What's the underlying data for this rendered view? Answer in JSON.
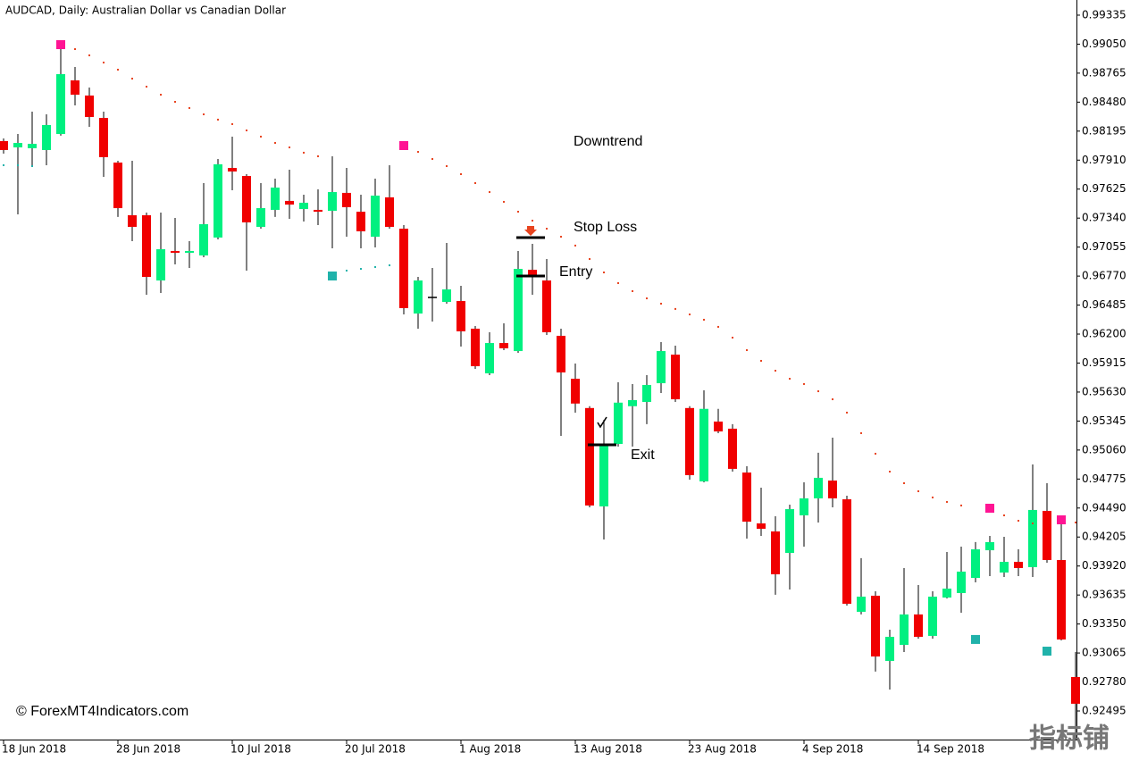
{
  "chart_data": {
    "type": "candlestick",
    "title": "AUDCAD, Daily:  Australian Dollar vs Canadian Dollar",
    "categories": [
      "18 Jun 2018",
      null,
      null,
      null,
      null,
      null,
      null,
      null,
      "28 Jun 2018",
      null,
      null,
      null,
      null,
      null,
      null,
      null,
      "10 Jul 2018",
      null,
      null,
      null,
      null,
      null,
      null,
      null,
      "20 Jul 2018",
      null,
      null,
      null,
      null,
      null,
      null,
      null,
      "1 Aug 2018",
      null,
      null,
      null,
      null,
      null,
      null,
      null,
      "13 Aug 2018",
      null,
      null,
      null,
      null,
      null,
      null,
      null,
      "23 Aug 2018",
      null,
      null,
      null,
      null,
      null,
      null,
      null,
      "4 Sep 2018",
      null,
      null,
      null,
      null,
      null,
      null,
      null,
      "14 Sep 2018",
      null,
      null,
      null,
      null,
      null,
      null,
      null,
      null,
      null,
      null,
      null
    ],
    "open": [
      0.98097,
      0.98035,
      0.98027,
      0.98009,
      0.98167,
      0.98694,
      0.98545,
      0.98325,
      0.97886,
      0.97368,
      0.97368,
      0.96727,
      0.97017,
      0.96999,
      0.96973,
      0.97149,
      0.97833,
      0.97754,
      0.97254,
      0.97421,
      0.97509,
      0.97429,
      0.97421,
      0.97412,
      0.97588,
      0.97403,
      0.97157,
      0.97544,
      0.97236,
      0.96402,
      0.9656,
      0.96516,
      0.96525,
      0.96253,
      0.95814,
      0.96112,
      0.96033,
      0.96832,
      0.96727,
      0.96183,
      0.95761,
      0.95473,
      0.94506,
      0.9512,
      0.95491,
      0.95533,
      0.95717,
      0.95998,
      0.95473,
      0.94752,
      0.9534,
      0.9527,
      0.94839,
      0.94339,
      0.9426,
      0.94049,
      0.94418,
      0.94585,
      0.9476,
      0.94576,
      0.9347,
      0.93628,
      0.92987,
      0.93145,
      0.93444,
      0.93233,
      0.9361,
      0.93654,
      0.93803,
      0.94075,
      0.93856,
      0.93961,
      0.93909,
      0.94462,
      0.93979,
      0.92829
    ],
    "high": [
      0.98123,
      0.98167,
      0.98387,
      0.9836,
      0.99089,
      0.98826,
      0.98624,
      0.98387,
      0.97904,
      0.97904,
      0.97394,
      0.97394,
      0.97342,
      0.97113,
      0.97684,
      0.97921,
      0.98141,
      0.97772,
      0.97684,
      0.97728,
      0.97816,
      0.9757,
      0.97623,
      0.97948,
      0.97833,
      0.9757,
      0.97728,
      0.9786,
      0.97271,
      0.96762,
      0.9685,
      0.97096,
      0.96674,
      0.96279,
      0.96218,
      0.96306,
      0.97017,
      0.97087,
      0.96938,
      0.96253,
      0.95911,
      0.95491,
      0.95357,
      0.95726,
      0.95709,
      0.95796,
      0.96121,
      0.96086,
      0.95491,
      0.95647,
      0.95465,
      0.95314,
      0.94901,
      0.9469,
      0.94409,
      0.94523,
      0.94743,
      0.95033,
      0.95182,
      0.94611,
      0.93997,
      0.93672,
      0.93294,
      0.939,
      0.93733,
      0.93672,
      0.94058,
      0.94111,
      0.94155,
      0.94216,
      0.94207,
      0.94084,
      0.94918,
      0.94734,
      0.94348,
      0.93075
    ],
    "low": [
      0.97974,
      0.97377,
      0.9786,
      0.9786,
      0.9815,
      0.98448,
      0.98237,
      0.97746,
      0.97351,
      0.97113,
      0.96587,
      0.96604,
      0.96885,
      0.9685,
      0.96955,
      0.97131,
      0.97614,
      0.96824,
      0.97236,
      0.97351,
      0.97333,
      0.97307,
      0.97271,
      0.97043,
      0.97157,
      0.97043,
      0.97052,
      0.97236,
      0.96393,
      0.96253,
      0.96323,
      0.96499,
      0.96077,
      0.95858,
      0.95796,
      0.96042,
      0.96016,
      0.96587,
      0.96191,
      0.95199,
      0.95428,
      0.94497,
      0.94181,
      0.95094,
      0.95094,
      0.95314,
      0.95621,
      0.95533,
      0.94769,
      0.94743,
      0.95226,
      0.94848,
      0.94189,
      0.94216,
      0.93637,
      0.93689,
      0.94111,
      0.94348,
      0.94497,
      0.93531,
      0.93444,
      0.92882,
      0.92706,
      0.93075,
      0.93206,
      0.93206,
      0.93601,
      0.93461,
      0.93759,
      0.93821,
      0.93812,
      0.93821,
      0.93812,
      0.93953,
      0.93189,
      0.92214
    ],
    "close": [
      0.98009,
      0.98079,
      0.9807,
      0.98255,
      0.98755,
      0.98553,
      0.98334,
      0.97939,
      0.97438,
      0.97254,
      0.96762,
      0.97034,
      0.96999,
      0.97017,
      0.9728,
      0.97869,
      0.97798,
      0.97298,
      0.97438,
      0.9764,
      0.97473,
      0.97491,
      0.97403,
      0.97596,
      0.97447,
      0.9721,
      0.97561,
      0.97254,
      0.96455,
      0.96727,
      0.9656,
      0.96639,
      0.96227,
      0.95884,
      0.96112,
      0.9606,
      0.96841,
      0.9678,
      0.96218,
      0.95823,
      0.95517,
      0.94515,
      0.95112,
      0.95526,
      0.95551,
      0.957,
      0.96033,
      0.95559,
      0.94813,
      0.95465,
      0.95243,
      0.94875,
      0.94356,
      0.94286,
      0.93839,
      0.94479,
      0.94585,
      0.94787,
      0.94585,
      0.93549,
      0.93619,
      0.93031,
      0.93224,
      0.93444,
      0.93224,
      0.93619,
      0.93698,
      0.93865,
      0.94084,
      0.94155,
      0.93961,
      0.939,
      0.94471,
      0.93979,
      0.93198,
      0.92566
    ],
    "up_color": "#00f080",
    "down_color": "#f00000",
    "sar_down": {
      "color": "#e8441f",
      "start_color": "#ff1493",
      "values": [
        null,
        null,
        null,
        null,
        0.99045,
        0.99001,
        0.9894,
        0.98869,
        0.98799,
        0.98711,
        0.98632,
        0.98553,
        0.98483,
        0.98422,
        0.9836,
        0.98308,
        0.98264,
        0.98202,
        0.98141,
        0.98079,
        0.98035,
        0.97983,
        0.97948,
        null,
        null,
        null,
        null,
        null,
        0.98053,
        0.97991,
        0.97921,
        0.97851,
        0.97772,
        0.97684,
        0.97596,
        0.975,
        0.97403,
        0.97315,
        0.97236,
        0.97157,
        0.9707,
        0.96938,
        0.96806,
        0.96701,
        0.96622,
        0.96551,
        0.96499,
        0.96447,
        0.96393,
        0.96341,
        0.96271,
        0.96165,
        0.96042,
        0.95937,
        0.9584,
        0.95761,
        0.95709,
        0.95638,
        0.95559,
        0.95428,
        0.95226,
        0.95024,
        0.94848,
        0.94734,
        0.94655,
        0.94594,
        0.9455,
        0.94515,
        null,
        0.94488,
        0.94418,
        0.94365,
        0.94339,
        null,
        0.94374,
        0.94348
      ]
    },
    "sar_up": {
      "color": "#20b2aa",
      "start_color": "#20b2aa",
      "values": [
        0.9786,
        0.9786,
        0.97851,
        null,
        null,
        null,
        null,
        null,
        null,
        null,
        null,
        null,
        null,
        null,
        null,
        null,
        null,
        null,
        null,
        null,
        null,
        null,
        null,
        0.96771,
        0.96824,
        0.96841,
        0.96859,
        0.96876,
        null,
        null,
        null,
        null,
        null,
        null,
        null,
        null,
        null,
        null,
        null,
        null,
        null,
        null,
        null,
        null,
        null,
        null,
        null,
        null,
        null,
        null,
        null,
        null,
        null,
        null,
        null,
        null,
        null,
        null,
        null,
        null,
        null,
        null,
        null,
        null,
        null,
        null,
        null,
        null,
        0.93198,
        null,
        null,
        null,
        null,
        0.93083,
        null,
        null
      ]
    },
    "ylim": [
      0.92214,
      0.99484
    ],
    "yticks": [
      0.99335,
      {
        "value": 0.9905,
        "label": "0.99050"
      },
      0.98765,
      {
        "value": 0.9848,
        "label": "0.98480"
      },
      0.98195,
      {
        "value": 0.9791,
        "label": "0.97910"
      },
      0.97625,
      {
        "value": 0.9734,
        "label": "0.97340"
      },
      0.97055,
      {
        "value": 0.9677,
        "label": "0.96770"
      },
      0.96485,
      {
        "value": 0.962,
        "label": "0.96200"
      },
      0.95915,
      {
        "value": 0.9563,
        "label": "0.95630"
      },
      0.95345,
      {
        "value": 0.9506,
        "label": "0.95060"
      },
      0.94775,
      {
        "value": 0.9449,
        "label": "0.94490"
      },
      0.94205,
      {
        "value": 0.9392,
        "label": "0.93920"
      },
      0.93635,
      {
        "value": 0.9335,
        "label": "0.93350"
      },
      0.93065,
      {
        "value": 0.9278,
        "label": "0.92780"
      },
      0.92495
    ],
    "annotations": [
      {
        "text": "Downtrend"
      },
      {
        "text": "Stop Loss",
        "value": 0.97149
      },
      {
        "text": "Entry",
        "value": 0.96771
      },
      {
        "text": "Exit",
        "value": 0.95112
      }
    ],
    "copyright": "© ForexMT4Indicators.com",
    "watermark": "指标铺"
  }
}
